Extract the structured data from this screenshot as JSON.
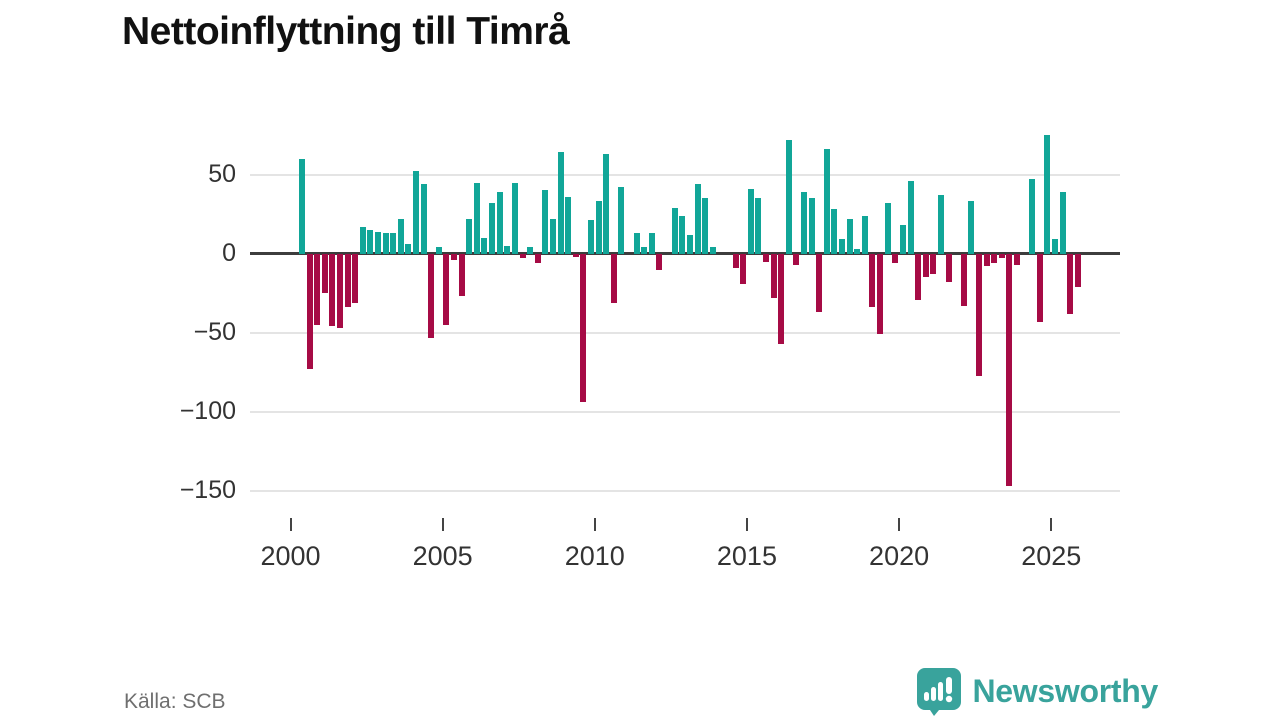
{
  "title": "Nettoinflyttning till Timrå",
  "footer": {
    "source_label": "Källa: SCB",
    "brand": "Newsworthy"
  },
  "colors": {
    "positive": "#11a698",
    "negative": "#a60b45",
    "zero_line": "#3d3d3d",
    "gridline": "#e4e4e4",
    "axis_text": "#333333",
    "brand_teal": "#39a39c"
  },
  "chart_data": {
    "type": "bar",
    "title": "Nettoinflyttning till Timrå",
    "xlabel": "",
    "ylabel": "",
    "ylim": [
      -160,
      80
    ],
    "y_ticks": [
      50,
      0,
      -50,
      -100,
      -150
    ],
    "x_ticks": [
      2000,
      2005,
      2010,
      2015,
      2020,
      2025
    ],
    "grid": true,
    "legend": false,
    "categories": [
      "2000-Q2",
      "2000-Q3",
      "2000-Q4",
      "2001-Q1",
      "2001-Q2",
      "2001-Q3",
      "2001-Q4",
      "2002-Q1",
      "2002-Q2",
      "2002-Q3",
      "2002-Q4",
      "2003-Q1",
      "2003-Q2",
      "2003-Q3",
      "2003-Q4",
      "2004-Q1",
      "2004-Q2",
      "2004-Q3",
      "2004-Q4",
      "2005-Q1",
      "2005-Q2",
      "2005-Q3",
      "2005-Q4",
      "2006-Q1",
      "2006-Q2",
      "2006-Q3",
      "2006-Q4",
      "2007-Q1",
      "2007-Q2",
      "2007-Q3",
      "2007-Q4",
      "2008-Q1",
      "2008-Q2",
      "2008-Q3",
      "2008-Q4",
      "2009-Q1",
      "2009-Q2",
      "2009-Q3",
      "2009-Q4",
      "2010-Q1",
      "2010-Q2",
      "2010-Q3",
      "2010-Q4",
      "2011-Q1",
      "2011-Q2",
      "2011-Q3",
      "2011-Q4",
      "2012-Q1",
      "2012-Q2",
      "2012-Q3",
      "2012-Q4",
      "2013-Q1",
      "2013-Q2",
      "2013-Q3",
      "2013-Q4",
      "2014-Q1",
      "2014-Q2",
      "2014-Q3",
      "2014-Q4",
      "2015-Q1",
      "2015-Q2",
      "2015-Q3",
      "2015-Q4",
      "2016-Q1",
      "2016-Q2",
      "2016-Q3",
      "2016-Q4",
      "2017-Q1",
      "2017-Q2",
      "2017-Q3",
      "2017-Q4",
      "2018-Q1",
      "2018-Q2",
      "2018-Q3",
      "2018-Q4",
      "2019-Q1",
      "2019-Q2",
      "2019-Q3",
      "2019-Q4",
      "2020-Q1",
      "2020-Q2",
      "2020-Q3",
      "2020-Q4",
      "2021-Q1",
      "2021-Q2",
      "2021-Q3",
      "2021-Q4",
      "2022-Q1",
      "2022-Q2",
      "2022-Q3",
      "2022-Q4",
      "2023-Q1",
      "2023-Q2",
      "2023-Q3",
      "2023-Q4",
      "2024-Q1",
      "2024-Q2",
      "2024-Q3",
      "2024-Q4",
      "2025-Q1",
      "2025-Q2",
      "2025-Q3",
      "2025-Q4"
    ],
    "values": [
      60,
      -73,
      -45,
      -25,
      -46,
      -47,
      -34,
      -31,
      17,
      15,
      14,
      13,
      13,
      22,
      6,
      52,
      44,
      -53,
      4,
      -45,
      -4,
      -27,
      22,
      45,
      10,
      32,
      39,
      5,
      45,
      -3,
      4,
      -6,
      40,
      22,
      64,
      36,
      -2,
      -94,
      21,
      33,
      63,
      -31,
      42,
      0,
      13,
      4,
      13,
      -10,
      0,
      29,
      24,
      12,
      44,
      35,
      4,
      0,
      0,
      -9,
      -19,
      41,
      35,
      -5,
      -28,
      -57,
      72,
      -7,
      39,
      35,
      -37,
      66,
      28,
      9,
      22,
      3,
      24,
      -34,
      -51,
      32,
      -6,
      18,
      46,
      -29,
      -15,
      -13,
      37,
      -18,
      0,
      -33,
      33,
      -77,
      -8,
      -6,
      -3,
      -147,
      -7,
      0,
      47,
      -43,
      75,
      9,
      39,
      -38,
      -21
    ]
  }
}
